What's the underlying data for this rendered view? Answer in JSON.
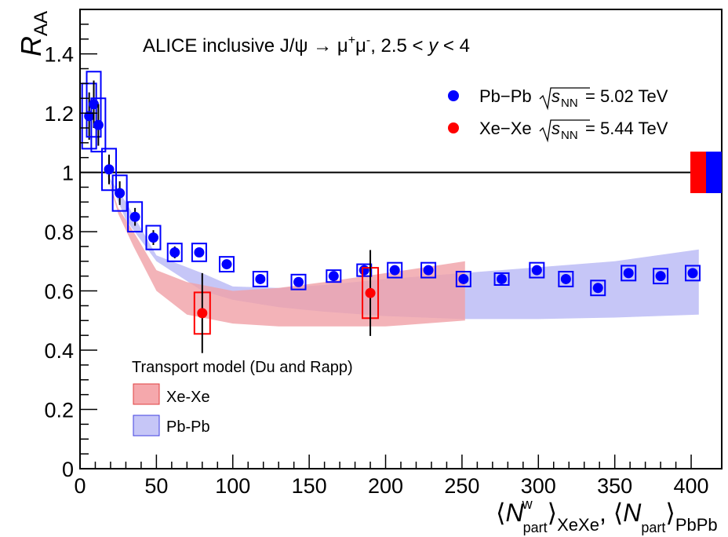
{
  "chart_data": {
    "type": "scatter",
    "title": "ALICE inclusive J/ψ → μ⁺μ⁻, 2.5 < y < 4",
    "ylabel": "R_AA",
    "xlabel": "⟨N^w_part⟩_XeXe, ⟨N_part⟩_PbPb",
    "xlim": [
      0,
      420
    ],
    "ylim": [
      0,
      1.55
    ],
    "grid": false,
    "x_ticks": [
      "0",
      "50",
      "100",
      "150",
      "200",
      "250",
      "300",
      "350",
      "400"
    ],
    "y_ticks": [
      "0",
      "0.2",
      "0.4",
      "0.6",
      "0.8",
      "1",
      "1.2",
      "1.4"
    ],
    "series": [
      {
        "name": "Pb–Pb √sNN = 5.02 TeV",
        "color": "#0000ff",
        "points": [
          {
            "x": 6,
            "y": 1.19,
            "err": 0.08,
            "sys": 0.11
          },
          {
            "x": 9,
            "y": 1.23,
            "err": 0.08,
            "sys": 0.11
          },
          {
            "x": 12,
            "y": 1.16,
            "err": 0.07,
            "sys": 0.09
          },
          {
            "x": 19,
            "y": 1.01,
            "err": 0.05,
            "sys": 0.07
          },
          {
            "x": 26,
            "y": 0.93,
            "err": 0.04,
            "sys": 0.06
          },
          {
            "x": 36,
            "y": 0.85,
            "err": 0.03,
            "sys": 0.05
          },
          {
            "x": 48,
            "y": 0.78,
            "err": 0.025,
            "sys": 0.04
          },
          {
            "x": 62,
            "y": 0.73,
            "err": 0.02,
            "sys": 0.03
          },
          {
            "x": 78,
            "y": 0.73,
            "err": 0.015,
            "sys": 0.03
          },
          {
            "x": 96,
            "y": 0.69,
            "err": 0.015,
            "sys": 0.025
          },
          {
            "x": 118,
            "y": 0.64,
            "err": 0.015,
            "sys": 0.025
          },
          {
            "x": 143,
            "y": 0.63,
            "err": 0.012,
            "sys": 0.025
          },
          {
            "x": 166,
            "y": 0.65,
            "err": 0.012,
            "sys": 0.02
          },
          {
            "x": 186,
            "y": 0.67,
            "err": 0.012,
            "sys": 0.02
          },
          {
            "x": 206,
            "y": 0.67,
            "err": 0.012,
            "sys": 0.025
          },
          {
            "x": 228,
            "y": 0.67,
            "err": 0.012,
            "sys": 0.025
          },
          {
            "x": 251,
            "y": 0.64,
            "err": 0.012,
            "sys": 0.025
          },
          {
            "x": 276,
            "y": 0.64,
            "err": 0.012,
            "sys": 0.02
          },
          {
            "x": 299,
            "y": 0.67,
            "err": 0.012,
            "sys": 0.025
          },
          {
            "x": 318,
            "y": 0.64,
            "err": 0.012,
            "sys": 0.025
          },
          {
            "x": 339,
            "y": 0.61,
            "err": 0.012,
            "sys": 0.025
          },
          {
            "x": 359,
            "y": 0.66,
            "err": 0.012,
            "sys": 0.025
          },
          {
            "x": 380,
            "y": 0.65,
            "err": 0.012,
            "sys": 0.025
          },
          {
            "x": 401,
            "y": 0.66,
            "err": 0.012,
            "sys": 0.025
          }
        ]
      },
      {
        "name": "Xe–Xe √sNN = 5.44 TeV",
        "color": "#ff0000",
        "points": [
          {
            "x": 80,
            "y": 0.525,
            "err": 0.135,
            "sys": 0.07
          },
          {
            "x": 190,
            "y": 0.593,
            "err": 0.145,
            "sys": 0.085
          }
        ]
      }
    ],
    "model_bands": {
      "legend_title": "Transport model (Du and Rapp)",
      "bands": [
        {
          "name": "Pb-Pb",
          "fill": "#c6c6f7",
          "x": [
            17,
            30,
            50,
            80,
            100,
            130,
            160,
            200,
            250,
            300,
            350,
            405
          ],
          "y_low": [
            1.0,
            0.84,
            0.7,
            0.6,
            0.57,
            0.545,
            0.53,
            0.515,
            0.505,
            0.505,
            0.51,
            0.52
          ],
          "y_high": [
            1.0,
            0.9,
            0.72,
            0.66,
            0.615,
            0.61,
            0.62,
            0.64,
            0.66,
            0.68,
            0.7,
            0.74
          ]
        },
        {
          "name": "Xe-Xe",
          "fill": "#f0a0a6",
          "opacity": 0.8,
          "x": [
            17,
            25,
            35,
            50,
            70,
            100,
            130,
            160,
            200,
            252
          ],
          "y_low": [
            1.0,
            0.86,
            0.75,
            0.6,
            0.52,
            0.49,
            0.48,
            0.48,
            0.48,
            0.5
          ],
          "y_high": [
            1.0,
            0.88,
            0.8,
            0.67,
            0.63,
            0.6,
            0.61,
            0.63,
            0.66,
            0.7
          ]
        }
      ]
    },
    "global_uncertainty": [
      {
        "series": "Xe-Xe",
        "color": "#ff0000",
        "low": 0.93,
        "high": 1.07
      },
      {
        "series": "Pb-Pb",
        "color": "#0000ff",
        "low": 0.93,
        "high": 1.07
      }
    ],
    "reference_line": 1
  },
  "text": {
    "y_axis_label_main": "R",
    "y_axis_label_sub": "AA",
    "title_prefix": "ALICE inclusive J/ψ → μ",
    "title_sup1": "+",
    "title_mid": "μ",
    "title_sup2": "-",
    "title_suffix": ", 2.5 < ",
    "title_y": "y",
    "title_end": " < 4",
    "legend_pb_system": "Pb−Pb",
    "legend_xe_system": "Xe−Xe",
    "legend_s": "s",
    "legend_nn": "NN",
    "legend_pb_energy": "= 5.02 TeV",
    "legend_xe_energy": "= 5.44 TeV",
    "model_legend_title": "Transport model (Du and Rapp)",
    "model_legend_xe": "Xe-Xe",
    "model_legend_pb": "Pb-Pb",
    "xaxis_N1": "N",
    "xaxis_w": "w",
    "xaxis_part1": "part",
    "xaxis_xexe": "XeXe",
    "xaxis_comma": ",",
    "xaxis_N2": "N",
    "xaxis_part2": "part",
    "xaxis_pbpb": "PbPb"
  }
}
